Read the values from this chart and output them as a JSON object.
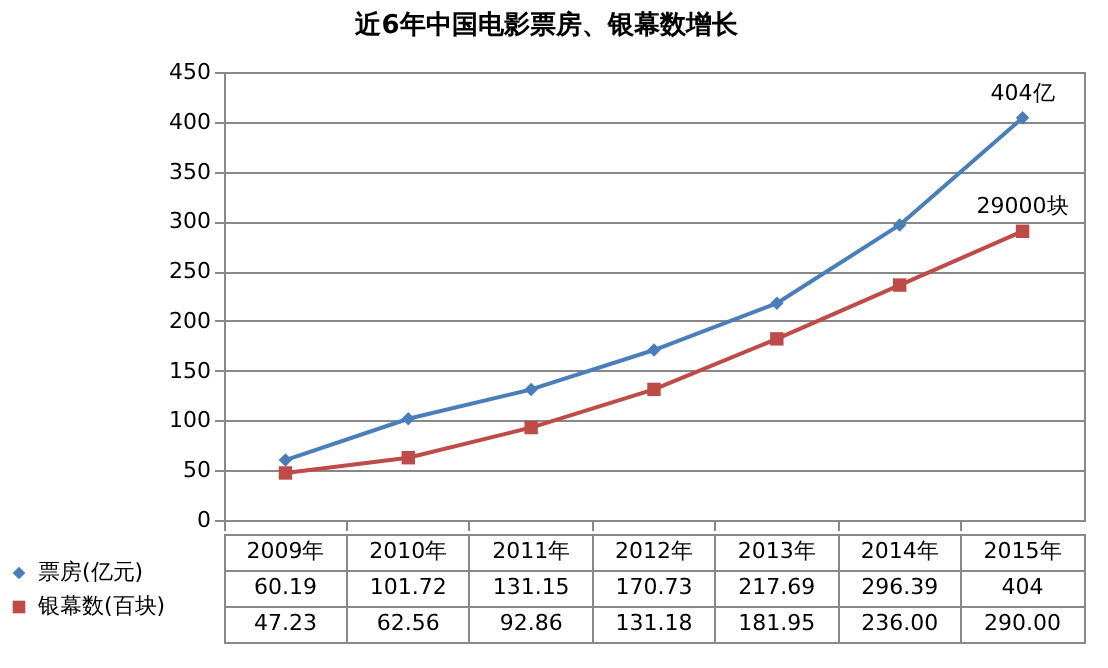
{
  "chart_data": {
    "type": "line",
    "title": "近6年中国电影票房、银幕数增长",
    "categories": [
      "2009年",
      "2010年",
      "2011年",
      "2012年",
      "2013年",
      "2014年",
      "2015年"
    ],
    "series": [
      {
        "name": "票房(亿元)",
        "color": "#4a7ebb",
        "marker": "diamond",
        "values": [
          60.19,
          101.72,
          131.15,
          170.73,
          217.69,
          296.39,
          404
        ],
        "value_labels": [
          "60.19",
          "101.72",
          "131.15",
          "170.73",
          "217.69",
          "296.39",
          "404"
        ]
      },
      {
        "name": "银幕数(百块)",
        "color": "#be4b48",
        "marker": "square",
        "values": [
          47.23,
          62.56,
          92.86,
          131.18,
          181.95,
          236.0,
          290.0
        ],
        "value_labels": [
          "47.23",
          "62.56",
          "92.86",
          "131.18",
          "181.95",
          "236.00",
          "290.00"
        ]
      }
    ],
    "ylim": [
      0,
      450
    ],
    "yticks": [
      0,
      50,
      100,
      150,
      200,
      250,
      300,
      350,
      400,
      450
    ],
    "grid": "y",
    "legend": "bottom left",
    "annotations": [
      {
        "text": "404亿",
        "x": "2015年",
        "y": 404
      },
      {
        "text": "29000块",
        "x": "2015年",
        "y": 290
      }
    ]
  }
}
